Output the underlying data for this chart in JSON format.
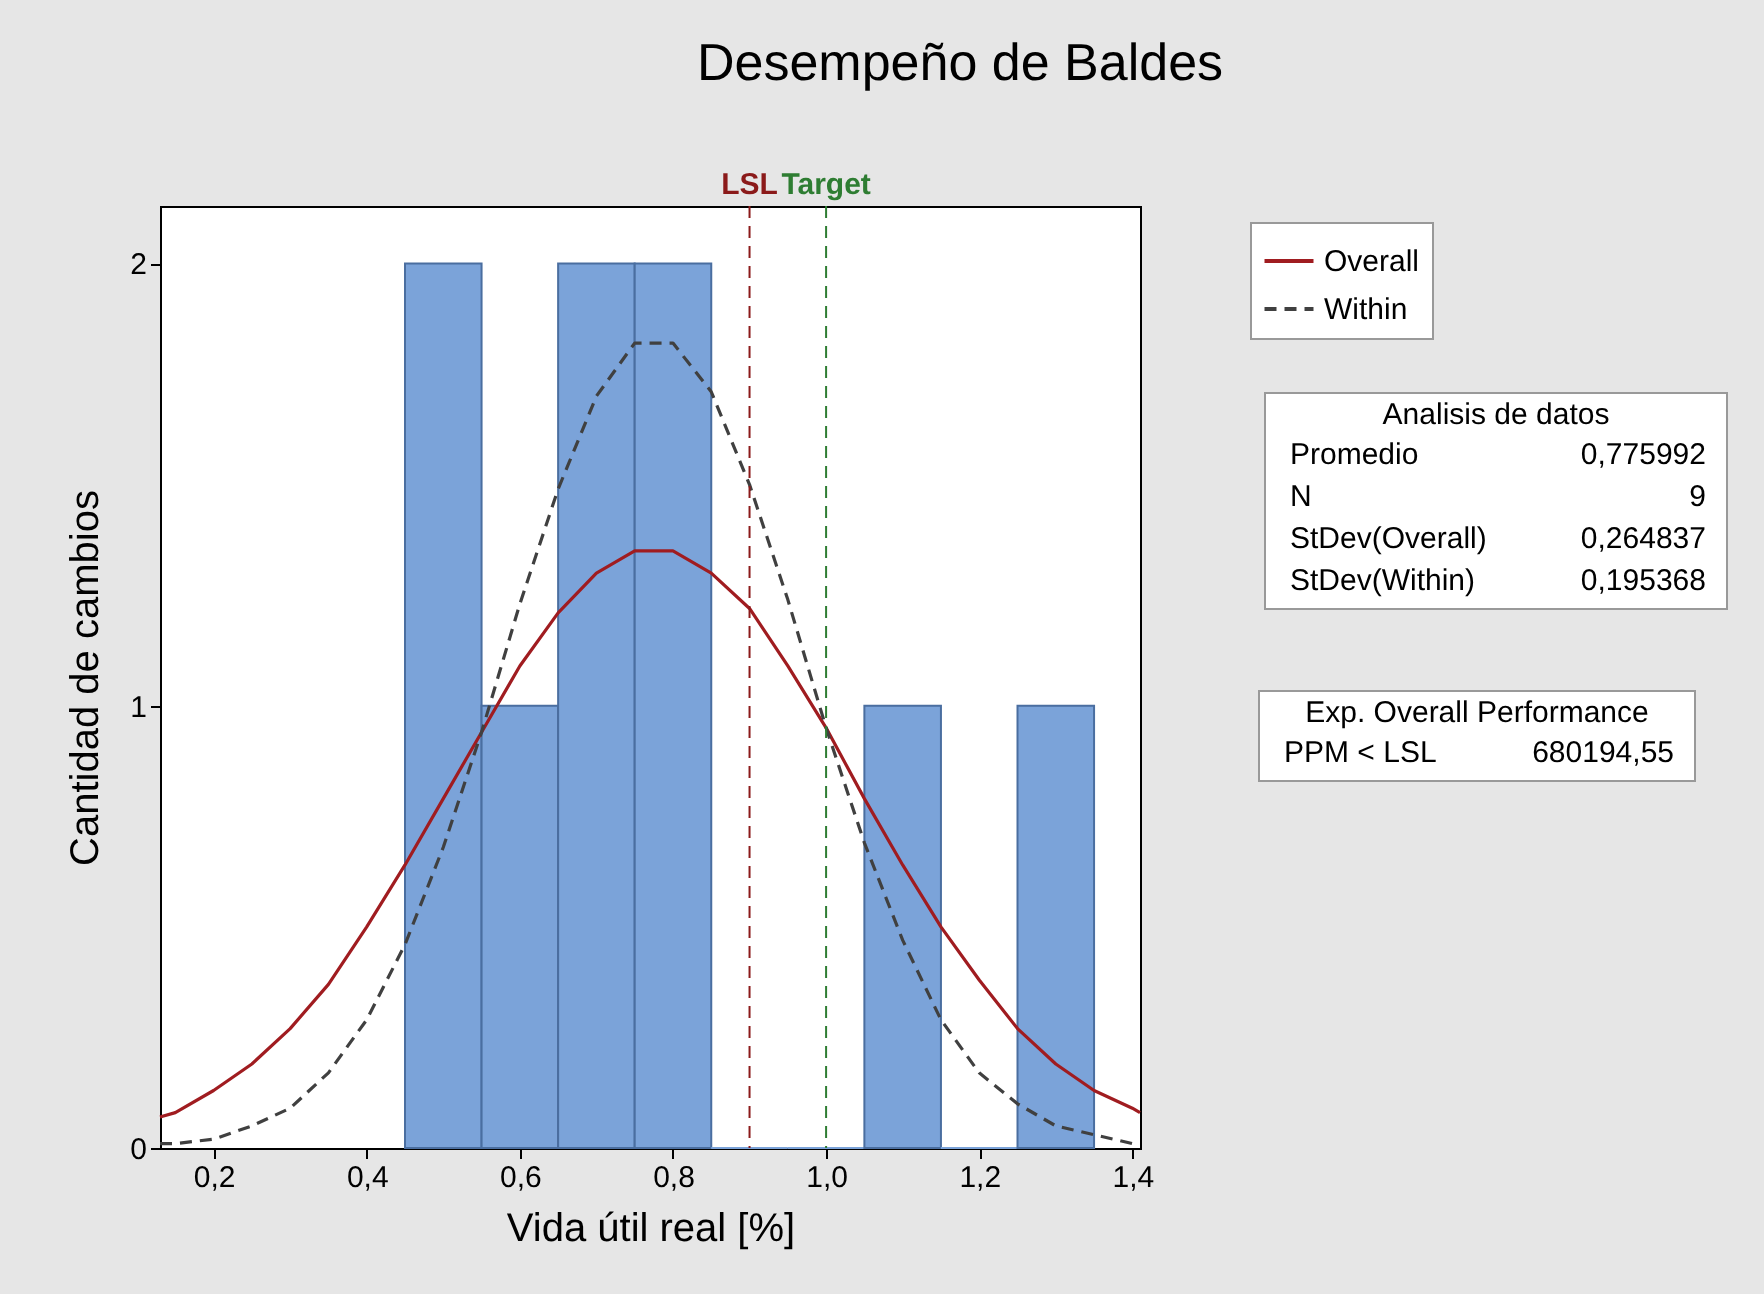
{
  "chart_data": {
    "type": "histogram",
    "title": "Desempeño de Baldes",
    "xlabel": "Vida útil real [%]",
    "ylabel": "Cantidad de cambios",
    "bins": [
      0.45,
      0.55,
      0.65,
      0.75,
      0.85,
      0.95,
      1.05,
      1.15,
      1.25,
      1.35
    ],
    "values": [
      2,
      1,
      2,
      2,
      0,
      0,
      1,
      0,
      1
    ],
    "color": "#7ba3d9",
    "xlim": [
      0.13,
      1.41
    ],
    "ylim": [
      0,
      2.13
    ],
    "xticks": [
      {
        "value": 0.2,
        "label": "0,2"
      },
      {
        "value": 0.4,
        "label": "0,4"
      },
      {
        "value": 0.6,
        "label": "0,6"
      },
      {
        "value": 0.8,
        "label": "0,8"
      },
      {
        "value": 1.0,
        "label": "1,0"
      },
      {
        "value": 1.2,
        "label": "1,2"
      },
      {
        "value": 1.4,
        "label": "1,4"
      }
    ],
    "yticks": [
      0,
      1,
      2
    ],
    "grid": false,
    "legend": "top right",
    "series": [
      {
        "name": "Overall",
        "type": "line",
        "color": "#a01c20",
        "line_style": "solid",
        "x": [
          0.13,
          0.15,
          0.2,
          0.25,
          0.3,
          0.35,
          0.4,
          0.45,
          0.5,
          0.55,
          0.6,
          0.65,
          0.7,
          0.75,
          0.8,
          0.85,
          0.9,
          0.95,
          1.0,
          1.05,
          1.1,
          1.15,
          1.2,
          1.25,
          1.3,
          1.35,
          1.4,
          1.41
        ],
        "values": [
          0.07,
          0.08,
          0.13,
          0.19,
          0.27,
          0.37,
          0.5,
          0.64,
          0.79,
          0.94,
          1.09,
          1.21,
          1.3,
          1.35,
          1.35,
          1.3,
          1.22,
          1.09,
          0.95,
          0.79,
          0.64,
          0.5,
          0.38,
          0.27,
          0.19,
          0.13,
          0.09,
          0.08
        ]
      },
      {
        "name": "Within",
        "type": "line",
        "color": "#404040",
        "line_style": "dashed",
        "x": [
          0.13,
          0.15,
          0.2,
          0.25,
          0.3,
          0.35,
          0.4,
          0.45,
          0.5,
          0.55,
          0.6,
          0.65,
          0.7,
          0.75,
          0.8,
          0.85,
          0.9,
          0.95,
          1.0,
          1.05,
          1.1,
          1.15,
          1.2,
          1.25,
          1.3,
          1.35,
          1.4,
          1.41
        ],
        "values": [
          0.01,
          0.01,
          0.02,
          0.05,
          0.09,
          0.17,
          0.29,
          0.46,
          0.68,
          0.94,
          1.23,
          1.49,
          1.7,
          1.82,
          1.82,
          1.71,
          1.5,
          1.24,
          0.95,
          0.69,
          0.47,
          0.29,
          0.17,
          0.1,
          0.05,
          0.03,
          0.01,
          0.01
        ]
      }
    ],
    "ref_lines": [
      {
        "axis": "x",
        "value": 0.9,
        "label": "LSL",
        "color": "#8b1a1a",
        "line_style": "dashed"
      },
      {
        "axis": "x",
        "value": 1.0,
        "label": "Target",
        "color": "#2e7d32",
        "line_style": "dashed"
      }
    ],
    "annotations": [
      "Analisis de datos",
      "Promedio",
      "0,775992",
      "N",
      "9",
      "StDev(Overall)",
      "0,264837",
      "StDev(Within)",
      "0,195368",
      "Exp. Overall Performance",
      "PPM < LSL",
      "680194,55"
    ]
  }
}
